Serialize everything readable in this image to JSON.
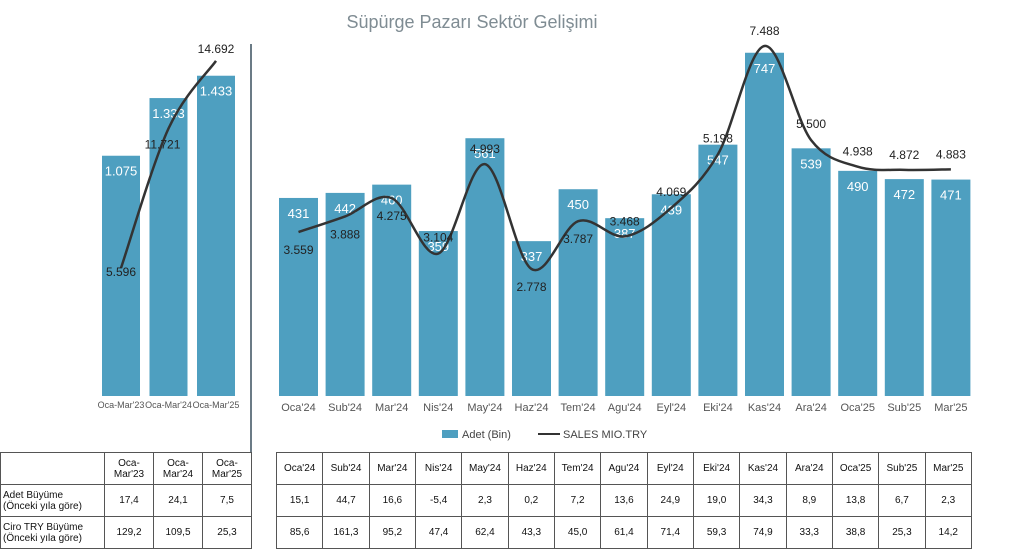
{
  "title": "Süpürge Pazarı Sektör Gelişimi",
  "colors": {
    "bar": "#4e9fc0",
    "line": "#333333",
    "divider": "#6b7b86",
    "title": "#7f8c93"
  },
  "legend": {
    "bar": "Adet (Bin)",
    "line": "SALES MIO.TRY"
  },
  "chart_data": [
    {
      "type": "bar",
      "categories": [
        "Oca-Mar'23",
        "Oca-Mar'24",
        "Oca-Mar'25"
      ],
      "series": [
        {
          "name": "Adet (Bin)",
          "type": "bar",
          "values": [
            1075,
            1333,
            1433
          ],
          "labels": [
            "1.075",
            "1.333",
            "1.433"
          ]
        },
        {
          "name": "SALES MIO.TRY",
          "type": "line",
          "values": [
            5596,
            11721,
            14692
          ],
          "labels": [
            "5.596",
            "11.721",
            "14.692"
          ]
        }
      ]
    },
    {
      "type": "bar",
      "title": "Süpürge Pazarı Sektör Gelişimi",
      "categories": [
        "Oca'24",
        "Sub'24",
        "Mar'24",
        "Nis'24",
        "May'24",
        "Haz'24",
        "Tem'24",
        "Agu'24",
        "Eyl'24",
        "Eki'24",
        "Kas'24",
        "Ara'24",
        "Oca'25",
        "Sub'25",
        "Mar'25"
      ],
      "series": [
        {
          "name": "Adet (Bin)",
          "type": "bar",
          "values": [
            431,
            442,
            460,
            359,
            561,
            337,
            450,
            387,
            439,
            547,
            747,
            539,
            490,
            472,
            471
          ]
        },
        {
          "name": "SALES MIO.TRY",
          "type": "line",
          "values": [
            3559,
            3888,
            4275,
            3104,
            4993,
            2778,
            3787,
            3468,
            4069,
            5198,
            7488,
            5500,
            4938,
            4872,
            4883
          ],
          "labels": [
            "3.559",
            "3.888",
            "4.275",
            "3.104",
            "4.993",
            "2.778",
            "3.787",
            "3.468",
            "4.069",
            "5.198",
            "7.488",
            "5.500",
            "4.938",
            "4.872",
            "4.883"
          ]
        }
      ],
      "legend": "bottom"
    }
  ],
  "table_left": {
    "headers": [
      "Oca-\nMar'23",
      "Oca-\nMar'24",
      "Oca-\nMar'25"
    ],
    "rows": [
      {
        "label": "Adet Büyüme\n(Önceki yıla göre)",
        "values": [
          "17,4",
          "24,1",
          "7,5"
        ]
      },
      {
        "label": "Ciro TRY Büyüme\n(Önceki yıla göre)",
        "values": [
          "129,2",
          "109,5",
          "25,3"
        ]
      }
    ]
  },
  "table_right": {
    "headers": [
      "Oca'24",
      "Sub'24",
      "Mar'24",
      "Nis'24",
      "May'24",
      "Haz'24",
      "Tem'24",
      "Agu'24",
      "Eyl'24",
      "Eki'24",
      "Kas'24",
      "Ara'24",
      "Oca'25",
      "Sub'25",
      "Mar'25"
    ],
    "rows": [
      [
        "15,1",
        "44,7",
        "16,6",
        "-5,4",
        "2,3",
        "0,2",
        "7,2",
        "13,6",
        "24,9",
        "19,0",
        "34,3",
        "8,9",
        "13,8",
        "6,7",
        "2,3"
      ],
      [
        "85,6",
        "161,3",
        "95,2",
        "47,4",
        "62,4",
        "43,3",
        "45,0",
        "61,4",
        "71,4",
        "59,3",
        "74,9",
        "33,3",
        "38,8",
        "25,3",
        "14,2"
      ]
    ]
  }
}
